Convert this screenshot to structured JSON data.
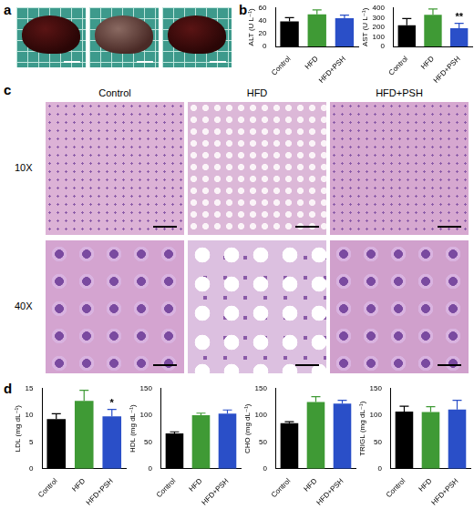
{
  "figure": {
    "panel_labels": [
      "a",
      "b",
      "c",
      "d"
    ],
    "histology": {
      "column_labels": [
        "Control",
        "HFD",
        "HFD+PSH"
      ],
      "row_labels": [
        "10X",
        "40X"
      ]
    }
  },
  "chart_data": [
    {
      "type": "bar",
      "y_label": "ALT (U L⁻¹)",
      "categories": [
        "Control",
        "HFD",
        "HFD+PSH"
      ],
      "values": [
        39,
        50,
        44
      ],
      "errors": [
        6,
        7,
        5
      ],
      "colors": [
        "#000000",
        "#3f9a35",
        "#2a4fc8"
      ],
      "ylim": [
        0,
        60
      ],
      "yticks": [
        0,
        20,
        40,
        60
      ],
      "grid": false,
      "annotations": []
    },
    {
      "type": "bar",
      "y_label": "AST (U L⁻¹)",
      "categories": [
        "Control",
        "HFD",
        "HFD+PSH"
      ],
      "values": [
        220,
        330,
        190
      ],
      "errors": [
        70,
        60,
        50
      ],
      "colors": [
        "#000000",
        "#3f9a35",
        "#2a4fc8"
      ],
      "ylim": [
        0,
        400
      ],
      "yticks": [
        0,
        100,
        200,
        300,
        400
      ],
      "grid": false,
      "annotations": [
        {
          "category": "HFD+PSH",
          "text": "**"
        }
      ]
    },
    {
      "type": "bar",
      "y_label": "LDL (mg dL⁻¹)",
      "categories": [
        "Control",
        "HFD",
        "HFD+PSH"
      ],
      "values": [
        9.3,
        12.7,
        9.8
      ],
      "errors": [
        1.0,
        2.0,
        1.3
      ],
      "colors": [
        "#000000",
        "#3f9a35",
        "#2a4fc8"
      ],
      "ylim": [
        0,
        15
      ],
      "yticks": [
        0,
        5,
        10,
        15
      ],
      "grid": false,
      "annotations": [
        {
          "category": "HFD+PSH",
          "text": "*"
        }
      ]
    },
    {
      "type": "bar",
      "y_label": "HDL (mg dL⁻¹)",
      "categories": [
        "Control",
        "HFD",
        "HFD+PSH"
      ],
      "values": [
        66,
        100,
        103
      ],
      "errors": [
        3,
        4,
        7
      ],
      "colors": [
        "#000000",
        "#3f9a35",
        "#2a4fc8"
      ],
      "ylim": [
        0,
        150
      ],
      "yticks": [
        0,
        50,
        100,
        150
      ],
      "grid": false,
      "annotations": []
    },
    {
      "type": "bar",
      "y_label": "CHO (mg dL⁻¹)",
      "categories": [
        "Control",
        "HFD",
        "HFD+PSH"
      ],
      "values": [
        85,
        125,
        122
      ],
      "errors": [
        3,
        10,
        6
      ],
      "colors": [
        "#000000",
        "#3f9a35",
        "#2a4fc8"
      ],
      "ylim": [
        0,
        150
      ],
      "yticks": [
        0,
        50,
        100,
        150
      ],
      "grid": false,
      "annotations": []
    },
    {
      "type": "bar",
      "y_label": "TRIGL (mg dL⁻¹)",
      "categories": [
        "Control",
        "HFD",
        "HFD+PSH"
      ],
      "values": [
        107,
        106,
        111
      ],
      "errors": [
        10,
        10,
        17
      ],
      "colors": [
        "#000000",
        "#3f9a35",
        "#2a4fc8"
      ],
      "ylim": [
        0,
        150
      ],
      "yticks": [
        0,
        50,
        100,
        150
      ],
      "grid": false,
      "annotations": []
    }
  ]
}
